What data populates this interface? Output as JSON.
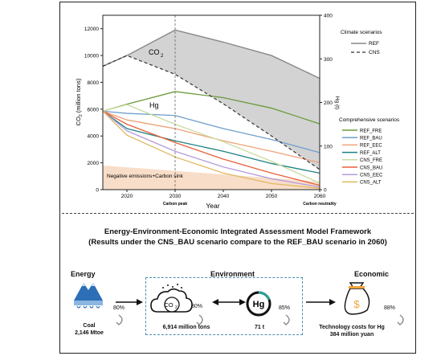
{
  "chart_data": {
    "type": "area",
    "y_left_label_main": "CO",
    "y_left_label_sub": "2",
    "y_left_label_unit": "(million tons)",
    "y_right_label": "Hg (t)",
    "xlabel": "Year",
    "xlim": [
      2015,
      2060
    ],
    "ylim_left": [
      0,
      13000
    ],
    "ylim_right": [
      0,
      400
    ],
    "y_left_ticks": [
      "0",
      "2000",
      "4000",
      "6000",
      "8000",
      "10000",
      "12000"
    ],
    "y_right_ticks": [
      "0",
      "100",
      "200",
      "300",
      "400"
    ],
    "x_ticks": [
      "2020",
      "2030",
      "2040",
      "2050",
      "2060"
    ],
    "x_annotations": [
      {
        "x": 2030,
        "text": "Carbon peak"
      },
      {
        "x": 2060,
        "text": "Carbon neutrality"
      }
    ],
    "region_labels": {
      "co2_main": "CO",
      "co2_sub": "2",
      "hg": "Hg",
      "negative": "Negative emissions+Carbon sink"
    },
    "climate_legend": {
      "title": "Climate scenarios",
      "items": [
        "REF",
        "CNS"
      ]
    },
    "comprehensive_legend": {
      "title": "Comprehensive scenarios",
      "items": [
        "REF_FRE",
        "REF_BAU",
        "REF_EEC",
        "REF_ALT",
        "CNS_FRE",
        "CNS_BAU",
        "CNS_EEC",
        "CNS_ALT"
      ]
    },
    "co2_series": [
      {
        "name": "REF",
        "x": [
          2015,
          2020,
          2030,
          2040,
          2050,
          2060
        ],
        "y": [
          9200,
          10000,
          11900,
          11000,
          10000,
          8300
        ]
      },
      {
        "name": "CNS",
        "x": [
          2015,
          2020,
          2030,
          2040,
          2050,
          2060
        ],
        "y": [
          9200,
          10000,
          8600,
          6400,
          4000,
          1500
        ]
      }
    ],
    "hg_series": [
      {
        "name": "REF_FRE",
        "color": "#6a9a3a",
        "x": [
          2015,
          2020,
          2030,
          2040,
          2050,
          2060
        ],
        "y": [
          180,
          196,
          225,
          211,
          187,
          151
        ]
      },
      {
        "name": "REF_BAU",
        "color": "#6f9fcd",
        "x": [
          2015,
          2020,
          2030,
          2040,
          2050,
          2060
        ],
        "y": [
          180,
          175,
          170,
          140,
          115,
          85
        ]
      },
      {
        "name": "REF_EEC",
        "color": "#f0a27a",
        "x": [
          2015,
          2020,
          2030,
          2040,
          2050,
          2060
        ],
        "y": [
          180,
          160,
          140,
          112,
          88,
          62
        ]
      },
      {
        "name": "REF_ALT",
        "color": "#1e8080",
        "x": [
          2015,
          2020,
          2030,
          2040,
          2050,
          2060
        ],
        "y": [
          180,
          140,
          112,
          88,
          60,
          38
        ]
      },
      {
        "name": "CNS_FRE",
        "color": "#c9dca0",
        "x": [
          2015,
          2020,
          2030,
          2040,
          2050,
          2060
        ],
        "y": [
          180,
          195,
          150,
          110,
          65,
          15
        ]
      },
      {
        "name": "CNS_BAU",
        "color": "#e8603c",
        "x": [
          2015,
          2020,
          2030,
          2040,
          2050,
          2060
        ],
        "y": [
          180,
          150,
          108,
          70,
          38,
          10
        ]
      },
      {
        "name": "CNS_EEC",
        "color": "#b39ddb",
        "x": [
          2015,
          2020,
          2030,
          2040,
          2050,
          2060
        ],
        "y": [
          180,
          135,
          88,
          52,
          25,
          6
        ]
      },
      {
        "name": "CNS_ALT",
        "color": "#e0b860",
        "x": [
          2015,
          2020,
          2030,
          2040,
          2050,
          2060
        ],
        "y": [
          180,
          125,
          75,
          38,
          14,
          3
        ]
      }
    ],
    "negative_area_top": [
      {
        "x": 2015,
        "y": 1800
      },
      {
        "x": 2060,
        "y": 600
      }
    ]
  },
  "framework": {
    "title_line1": "Energy-Environment-Economic Integrated Assessment Model Framework",
    "title_line2": "(Results under the CNS_BAU scenario compare to the REF_BAU scenario in 2060)",
    "categories": {
      "energy": "Energy",
      "environment": "Environment",
      "economic": "Economic"
    },
    "energy": {
      "label": "Coal",
      "value": "2,146 Mtoe",
      "percent": "80%"
    },
    "co2": {
      "icon_text_main": "CO",
      "icon_text_sub": "2",
      "value": "6,914 million tons",
      "percent": "80%"
    },
    "hg": {
      "icon_text": "Hg",
      "value": "71 t",
      "percent": "85%"
    },
    "economic": {
      "icon_text": "$",
      "label": "Technology costs for Hg",
      "value": "384 million yuan",
      "percent": "88%"
    },
    "colors": {
      "ref_area": "#d3d3d3",
      "negative_area": "#f8ddc8",
      "coal_blue": "#2c6fb7",
      "money_bag": "#f2a33a",
      "hg_ring": "#2aa09a",
      "dashed_box": "#4a8faf"
    }
  }
}
